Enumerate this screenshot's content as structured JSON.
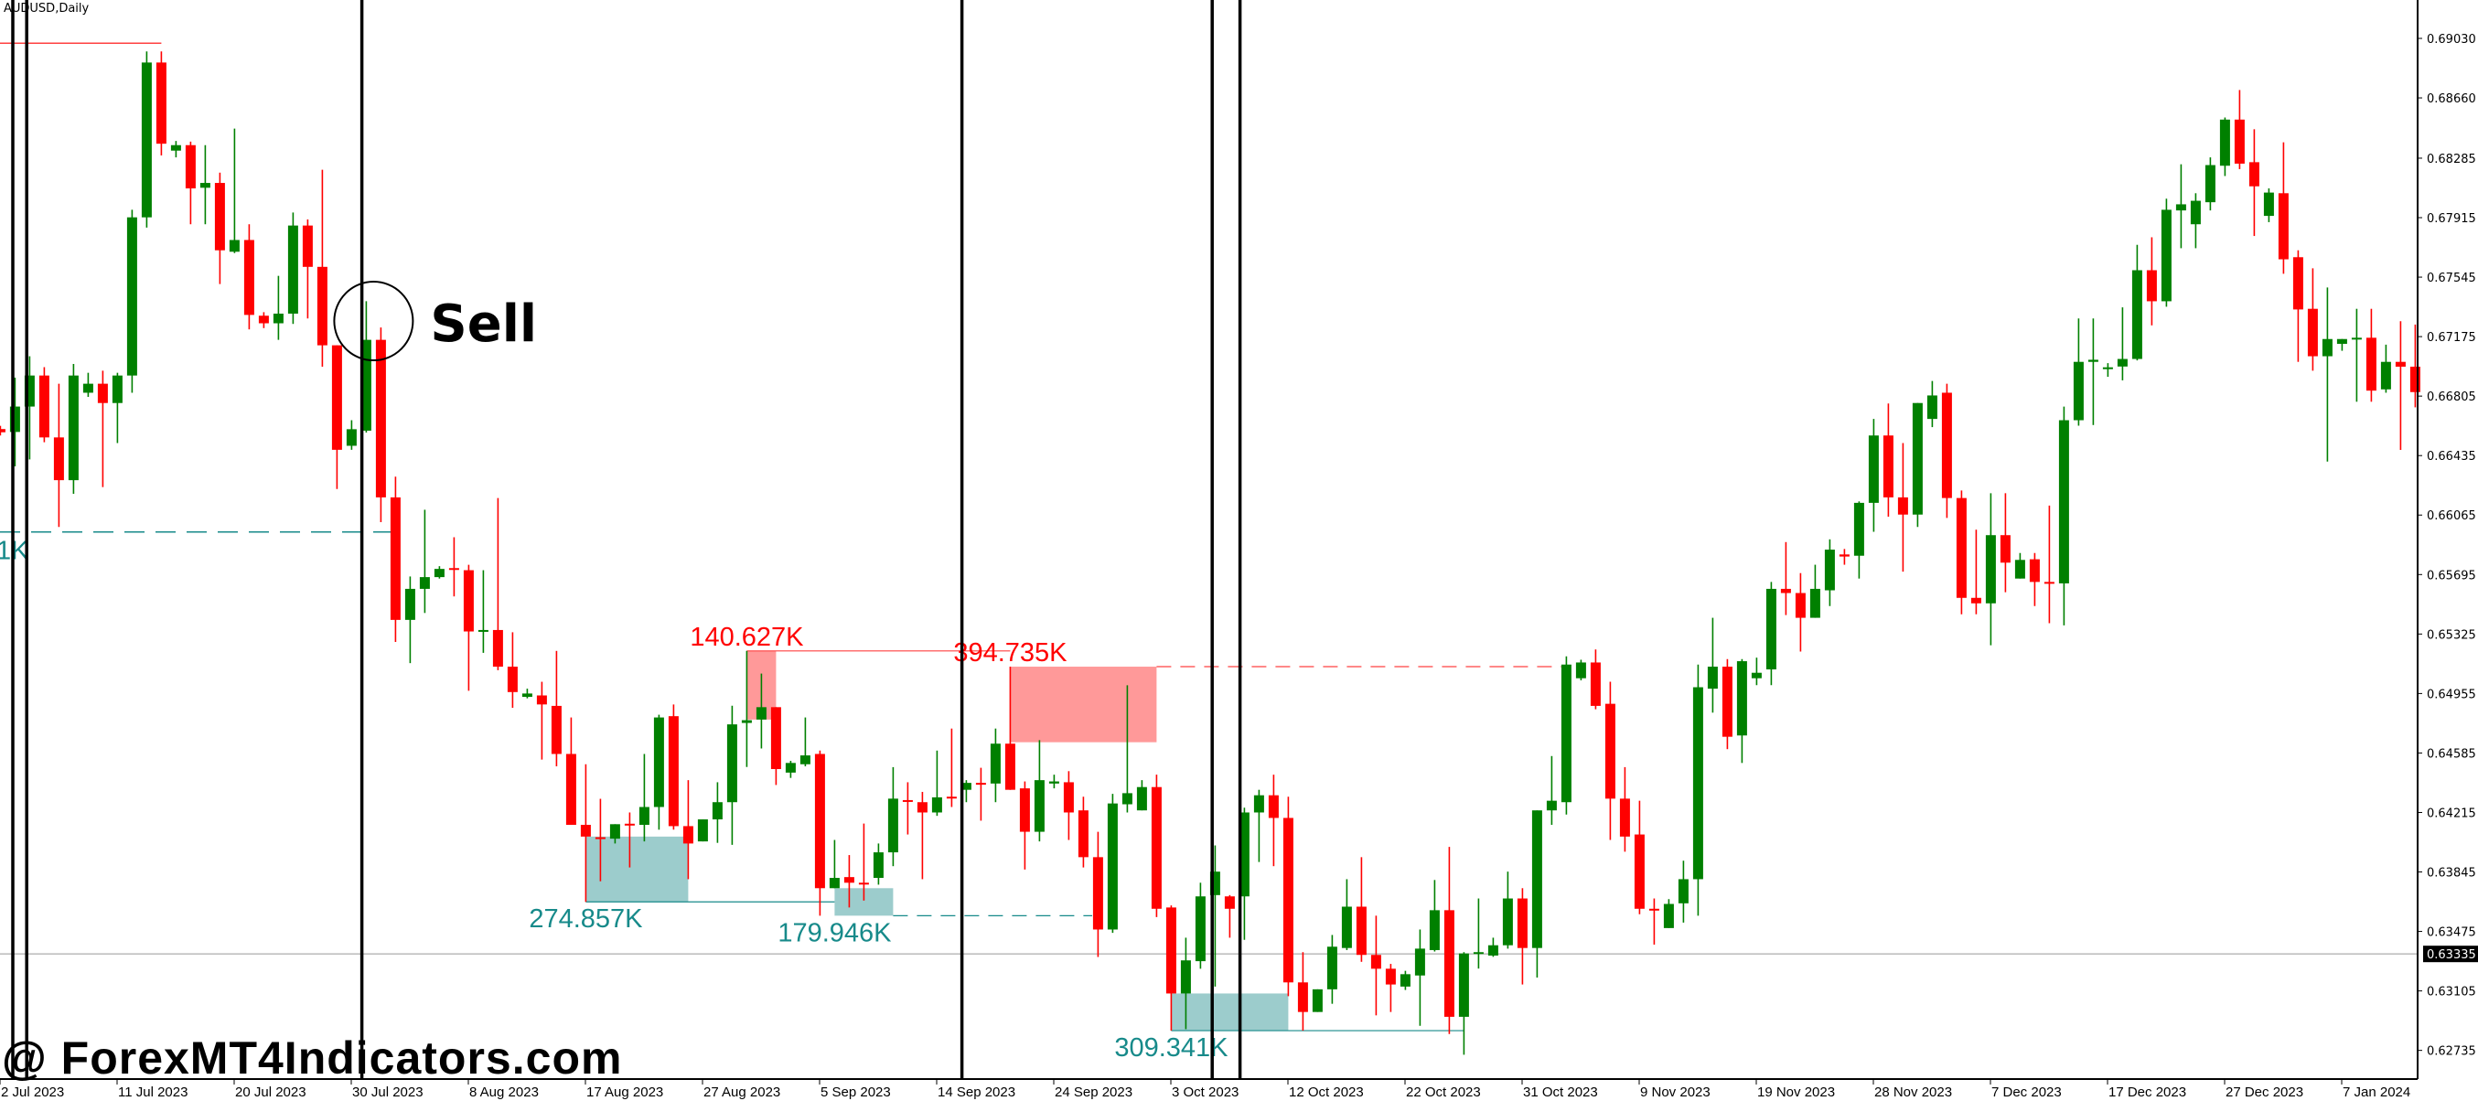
{
  "title": "AUDUSD,Daily",
  "watermark": "@ ForexMT4Indicators.com",
  "chart_data": {
    "type": "candlestick",
    "symbol": "AUDUSD",
    "timeframe": "Daily",
    "candle_format": [
      "open",
      "high",
      "low",
      "close"
    ],
    "colors": {
      "bull": "#008000",
      "bear": "#ff0000",
      "demand_zone": "#9ccccc",
      "supply_zone": "#ff9999",
      "demand_text": "#178a8a",
      "supply_text": "#ff0000",
      "grid_line": "#999999"
    },
    "ylim": [
      0.626,
      0.6927
    ],
    "current_price": "0.63335",
    "y_ticks": [
      "0.69030",
      "0.68660",
      "0.68285",
      "0.67915",
      "0.67545",
      "0.67175",
      "0.66805",
      "0.66435",
      "0.66065",
      "0.65695",
      "0.65325",
      "0.64955",
      "0.64585",
      "0.64215",
      "0.63845",
      "0.63475",
      "0.63105",
      "0.62735"
    ],
    "x_ticks_every_bars": 8,
    "x_ticks": [
      "2 Jul 2023",
      "11 Jul 2023",
      "20 Jul 2023",
      "30 Jul 2023",
      "8 Aug 2023",
      "17 Aug 2023",
      "27 Aug 2023",
      "5 Sep 2023",
      "14 Sep 2023",
      "24 Sep 2023",
      "3 Oct 2023",
      "12 Oct 2023",
      "22 Oct 2023",
      "31 Oct 2023",
      "9 Nov 2023",
      "19 Nov 2023",
      "28 Nov 2023",
      "7 Dec 2023",
      "17 Dec 2023",
      "27 Dec 2023",
      "7 Jan 2024"
    ],
    "candles": [
      [
        0.666,
        0.6662,
        0.6656,
        0.6658
      ],
      [
        0.66582,
        0.6692,
        0.66368,
        0.6674
      ],
      [
        0.6674,
        0.67053,
        0.66411,
        0.66933
      ],
      [
        0.66933,
        0.66985,
        0.66518,
        0.66548
      ],
      [
        0.66548,
        0.66882,
        0.65991,
        0.66282
      ],
      [
        0.66282,
        0.67005,
        0.66197,
        0.66933
      ],
      [
        0.66826,
        0.6695,
        0.668,
        0.66882
      ],
      [
        0.66882,
        0.66963,
        0.66239,
        0.66762
      ],
      [
        0.66762,
        0.6695,
        0.66513,
        0.66933
      ],
      [
        0.66933,
        0.67964,
        0.66826,
        0.67917
      ],
      [
        0.67917,
        0.68949,
        0.67853,
        0.6888
      ],
      [
        0.6888,
        0.68949,
        0.68302,
        0.68375
      ],
      [
        0.68332,
        0.68392,
        0.6829,
        0.68366
      ],
      [
        0.68366,
        0.68388,
        0.67874,
        0.68097
      ],
      [
        0.68101,
        0.68366,
        0.67874,
        0.68131
      ],
      [
        0.68131,
        0.68195,
        0.67502,
        0.67712
      ],
      [
        0.67703,
        0.68469,
        0.67695,
        0.67776
      ],
      [
        0.67776,
        0.67874,
        0.6722,
        0.6731
      ],
      [
        0.67305,
        0.67327,
        0.67228,
        0.67258
      ],
      [
        0.67258,
        0.67553,
        0.67155,
        0.67318
      ],
      [
        0.67318,
        0.67947,
        0.67254,
        0.67866
      ],
      [
        0.67866,
        0.67904,
        0.67288,
        0.67609
      ],
      [
        0.67609,
        0.68213,
        0.66988,
        0.67121
      ],
      [
        0.67121,
        0.67121,
        0.66227,
        0.66471
      ],
      [
        0.66496,
        0.66655,
        0.66471,
        0.66599
      ],
      [
        0.6659,
        0.67395,
        0.66578,
        0.67155
      ],
      [
        0.67155,
        0.67232,
        0.66021,
        0.66175
      ],
      [
        0.66175,
        0.66304,
        0.65276,
        0.65413
      ],
      [
        0.65413,
        0.65683,
        0.65144,
        0.65606
      ],
      [
        0.65606,
        0.66098,
        0.65456,
        0.65679
      ],
      [
        0.65679,
        0.65747,
        0.6567,
        0.6573
      ],
      [
        0.65735,
        0.65927,
        0.65559,
        0.65725
      ],
      [
        0.65722,
        0.65756,
        0.64972,
        0.65341
      ],
      [
        0.65341,
        0.65722,
        0.65208,
        0.6535
      ],
      [
        0.6535,
        0.66171,
        0.651,
        0.65122
      ],
      [
        0.65122,
        0.65336,
        0.64866,
        0.64964
      ],
      [
        0.64934,
        0.64985,
        0.64925,
        0.64955
      ],
      [
        0.64943,
        0.65028,
        0.64544,
        0.64887
      ],
      [
        0.64878,
        0.6522,
        0.64502,
        0.64579
      ],
      [
        0.64579,
        0.64806,
        0.64138,
        0.64138
      ],
      [
        0.64138,
        0.64515,
        0.63659,
        0.64065
      ],
      [
        0.64061,
        0.643,
        0.63787,
        0.64052
      ],
      [
        0.64052,
        0.64142,
        0.64022,
        0.64142
      ],
      [
        0.64145,
        0.64215,
        0.63873,
        0.6414
      ],
      [
        0.64138,
        0.64579,
        0.64035,
        0.64249
      ],
      [
        0.64249,
        0.64823,
        0.64108,
        0.64806
      ],
      [
        0.64814,
        0.64887,
        0.64108,
        0.6413
      ],
      [
        0.6413,
        0.64416,
        0.638,
        0.64022
      ],
      [
        0.64035,
        0.64172,
        0.64035,
        0.64172
      ],
      [
        0.64172,
        0.64403,
        0.64026,
        0.64279
      ],
      [
        0.64279,
        0.64879,
        0.64014,
        0.64763
      ],
      [
        0.64772,
        0.6522,
        0.64498,
        0.64789
      ],
      [
        0.64793,
        0.65079,
        0.64613,
        0.6487
      ],
      [
        0.6487,
        0.6487,
        0.64386,
        0.64485
      ],
      [
        0.64463,
        0.64536,
        0.6443,
        0.64523
      ],
      [
        0.64515,
        0.64806,
        0.64502,
        0.6457
      ],
      [
        0.64579,
        0.646,
        0.63573,
        0.63744
      ],
      [
        0.63744,
        0.64044,
        0.63744,
        0.63808
      ],
      [
        0.63813,
        0.6395,
        0.63624,
        0.63778
      ],
      [
        0.63778,
        0.64146,
        0.63667,
        0.6377
      ],
      [
        0.63808,
        0.64022,
        0.63766,
        0.63967
      ],
      [
        0.63967,
        0.64497,
        0.63881,
        0.64301
      ],
      [
        0.64292,
        0.64403,
        0.64078,
        0.64288
      ],
      [
        0.64279,
        0.64343,
        0.638,
        0.64215
      ],
      [
        0.64215,
        0.646,
        0.64194,
        0.64309
      ],
      [
        0.64313,
        0.64737,
        0.64249,
        0.64309
      ],
      [
        0.64356,
        0.64416,
        0.64279,
        0.64399
      ],
      [
        0.64399,
        0.64493,
        0.64164,
        0.64395
      ],
      [
        0.64395,
        0.64737,
        0.64279,
        0.64643
      ],
      [
        0.64643,
        0.65122,
        0.64356,
        0.64356
      ],
      [
        0.64365,
        0.64408,
        0.6386,
        0.64095
      ],
      [
        0.64095,
        0.64665,
        0.64035,
        0.64416
      ],
      [
        0.64395,
        0.6445,
        0.64365,
        0.64408
      ],
      [
        0.64403,
        0.64472,
        0.64044,
        0.64215
      ],
      [
        0.64228,
        0.64313,
        0.63873,
        0.63937
      ],
      [
        0.63937,
        0.64095,
        0.63316,
        0.63487
      ],
      [
        0.63487,
        0.64331,
        0.63466,
        0.64271
      ],
      [
        0.64266,
        0.65006,
        0.64215,
        0.64335
      ],
      [
        0.64228,
        0.64416,
        0.64228,
        0.64373
      ],
      [
        0.64373,
        0.6445,
        0.63564,
        0.63616
      ],
      [
        0.63624,
        0.63637,
        0.62858,
        0.63089
      ],
      [
        0.63089,
        0.63436,
        0.62867,
        0.63295
      ],
      [
        0.6329,
        0.63778,
        0.63243,
        0.63693
      ],
      [
        0.63701,
        0.6401,
        0.63132,
        0.63847
      ],
      [
        0.63693,
        0.63701,
        0.63436,
        0.63616
      ],
      [
        0.63693,
        0.64245,
        0.63423,
        0.64215
      ],
      [
        0.64215,
        0.64356,
        0.63907,
        0.64322
      ],
      [
        0.64322,
        0.6445,
        0.63881,
        0.64181
      ],
      [
        0.64181,
        0.64313,
        0.63072,
        0.63158
      ],
      [
        0.63158,
        0.63346,
        0.62858,
        0.62974
      ],
      [
        0.62974,
        0.63115,
        0.62974,
        0.63115
      ],
      [
        0.63115,
        0.63453,
        0.63025,
        0.6338
      ],
      [
        0.63372,
        0.638,
        0.63359,
        0.63629
      ],
      [
        0.63629,
        0.63937,
        0.63286,
        0.63329
      ],
      [
        0.63329,
        0.63573,
        0.62953,
        0.63243
      ],
      [
        0.63243,
        0.63273,
        0.62974,
        0.63145
      ],
      [
        0.63132,
        0.6323,
        0.63111,
        0.63209
      ],
      [
        0.63201,
        0.63487,
        0.62888,
        0.63368
      ],
      [
        0.63359,
        0.63795,
        0.6335,
        0.63607
      ],
      [
        0.63607,
        0.64001,
        0.62837,
        0.62944
      ],
      [
        0.62944,
        0.63346,
        0.62708,
        0.63338
      ],
      [
        0.63338,
        0.6368,
        0.63244,
        0.63346
      ],
      [
        0.63325,
        0.63436,
        0.63317,
        0.63389
      ],
      [
        0.63389,
        0.63847,
        0.63368,
        0.6368
      ],
      [
        0.6368,
        0.63744,
        0.63145,
        0.63372
      ],
      [
        0.63372,
        0.64228,
        0.63188,
        0.64228
      ],
      [
        0.64228,
        0.64566,
        0.64138,
        0.64288
      ],
      [
        0.64279,
        0.65186,
        0.64202,
        0.65135
      ],
      [
        0.6505,
        0.65165,
        0.65037,
        0.65148
      ],
      [
        0.65148,
        0.65229,
        0.64857,
        0.64878
      ],
      [
        0.64891,
        0.65028,
        0.64044,
        0.64301
      ],
      [
        0.64301,
        0.64497,
        0.63971,
        0.64065
      ],
      [
        0.64078,
        0.64288,
        0.63582,
        0.63616
      ],
      [
        0.63616,
        0.6368,
        0.63393,
        0.63607
      ],
      [
        0.63496,
        0.63676,
        0.63496,
        0.63646
      ],
      [
        0.6365,
        0.63915,
        0.6353,
        0.638
      ],
      [
        0.638,
        0.65135,
        0.63573,
        0.64994
      ],
      [
        0.64985,
        0.65426,
        0.64836,
        0.65122
      ],
      [
        0.65122,
        0.65169,
        0.64609,
        0.64686
      ],
      [
        0.64694,
        0.65169,
        0.64523,
        0.65156
      ],
      [
        0.6505,
        0.65178,
        0.65007,
        0.65084
      ],
      [
        0.65105,
        0.65649,
        0.65007,
        0.65606
      ],
      [
        0.65606,
        0.65897,
        0.65443,
        0.6558
      ],
      [
        0.6558,
        0.65704,
        0.65216,
        0.65426
      ],
      [
        0.65426,
        0.65756,
        0.65426,
        0.65606
      ],
      [
        0.65597,
        0.65914,
        0.65499,
        0.6585
      ],
      [
        0.6582,
        0.65854,
        0.65756,
        0.65807
      ],
      [
        0.65812,
        0.6615,
        0.6567,
        0.66141
      ],
      [
        0.66141,
        0.66663,
        0.65961,
        0.6656
      ],
      [
        0.6656,
        0.66759,
        0.66055,
        0.66175
      ],
      [
        0.66175,
        0.66513,
        0.65713,
        0.66068
      ],
      [
        0.66068,
        0.66762,
        0.65991,
        0.66762
      ],
      [
        0.66663,
        0.66899,
        0.66612,
        0.66809
      ],
      [
        0.66826,
        0.66882,
        0.66047,
        0.66171
      ],
      [
        0.66171,
        0.66218,
        0.65448,
        0.6555
      ],
      [
        0.6555,
        0.65974,
        0.65448,
        0.65516
      ],
      [
        0.65516,
        0.66201,
        0.65255,
        0.6594
      ],
      [
        0.6594,
        0.66201,
        0.65585,
        0.65769
      ],
      [
        0.6567,
        0.65829,
        0.6567,
        0.65786
      ],
      [
        0.6579,
        0.65829,
        0.65499,
        0.65649
      ],
      [
        0.65649,
        0.66124,
        0.65392,
        0.6564
      ],
      [
        0.6564,
        0.6674,
        0.65379,
        0.66655
      ],
      [
        0.66655,
        0.67288,
        0.66621,
        0.67018
      ],
      [
        0.67018,
        0.67288,
        0.66625,
        0.67031
      ],
      [
        0.66976,
        0.6701,
        0.66925,
        0.66984
      ],
      [
        0.66989,
        0.67357,
        0.66903,
        0.67036
      ],
      [
        0.67036,
        0.67746,
        0.67027,
        0.67588
      ],
      [
        0.67588,
        0.67793,
        0.67245,
        0.67395
      ],
      [
        0.67395,
        0.68033,
        0.67361,
        0.67964
      ],
      [
        0.6796,
        0.68247,
        0.67725,
        0.67998
      ],
      [
        0.67874,
        0.68067,
        0.67725,
        0.6802
      ],
      [
        0.68011,
        0.6829,
        0.6796,
        0.68242
      ],
      [
        0.68238,
        0.68538,
        0.68174,
        0.68525
      ],
      [
        0.68525,
        0.68709,
        0.68217,
        0.68251
      ],
      [
        0.6826,
        0.68465,
        0.67801,
        0.6811
      ],
      [
        0.67926,
        0.68097,
        0.67887,
        0.68071
      ],
      [
        0.68067,
        0.68384,
        0.67566,
        0.67656
      ],
      [
        0.67669,
        0.67712,
        0.67018,
        0.67344
      ],
      [
        0.67348,
        0.676,
        0.66963,
        0.67053
      ],
      [
        0.67053,
        0.67481,
        0.66398,
        0.6716
      ],
      [
        0.6713,
        0.6716,
        0.67087,
        0.6716
      ],
      [
        0.6716,
        0.67348,
        0.6677,
        0.67168
      ],
      [
        0.67168,
        0.67348,
        0.6677,
        0.66839
      ],
      [
        0.66847,
        0.67125,
        0.66826,
        0.67018
      ],
      [
        0.67018,
        0.67271,
        0.6647,
        0.66988
      ],
      [
        0.66988,
        0.6725,
        0.66735,
        0.6683
      ]
    ],
    "zones": [
      {
        "kind": "supply",
        "label": "140.627K",
        "from_bar": 51,
        "to_bar": 53,
        "top": 0.6522,
        "bottom": 0.64793,
        "line_price": 0.6522,
        "line_to_bar": 69,
        "line_style": "solid"
      },
      {
        "kind": "supply",
        "label": "394.735K",
        "from_bar": 69,
        "to_bar": 79,
        "top": 0.65122,
        "bottom": 0.64652,
        "line_price": 0.65122,
        "line_to_bar": 107,
        "line_style": "dashed"
      },
      {
        "kind": "demand",
        "label": "274.857K",
        "from_bar": 40,
        "to_bar": 47,
        "top": 0.64065,
        "bottom": 0.63659,
        "line_price": 0.63659,
        "line_to_bar": 57,
        "line_style": "solid"
      },
      {
        "kind": "demand",
        "label": "179.946K",
        "from_bar": 57,
        "to_bar": 61,
        "top": 0.63744,
        "bottom": 0.63573,
        "line_price": 0.63573,
        "line_to_bar": 74.6,
        "line_style": "dashed"
      },
      {
        "kind": "demand",
        "label": "309.341K",
        "from_bar": 80,
        "to_bar": 88,
        "top": 0.63089,
        "bottom": 0.62858,
        "line_price": 0.62858,
        "line_to_bar": 100,
        "line_style": "solid"
      }
    ],
    "partial_levels": [
      {
        "kind": "demand",
        "label": "1K",
        "price": 0.6596,
        "to_bar": 26.7,
        "line_style": "dashed"
      },
      {
        "kind": "supply",
        "label": "",
        "price": 0.69,
        "to_bar": 11,
        "line_style": "solid"
      }
    ],
    "vertical_lines_at_bar": [
      0.85,
      1.8,
      24.7,
      65.7,
      82.8,
      84.7
    ],
    "annotations": [
      {
        "text": "Sell",
        "bar": 25.5,
        "price": 0.67272,
        "shape": "circle"
      }
    ]
  }
}
